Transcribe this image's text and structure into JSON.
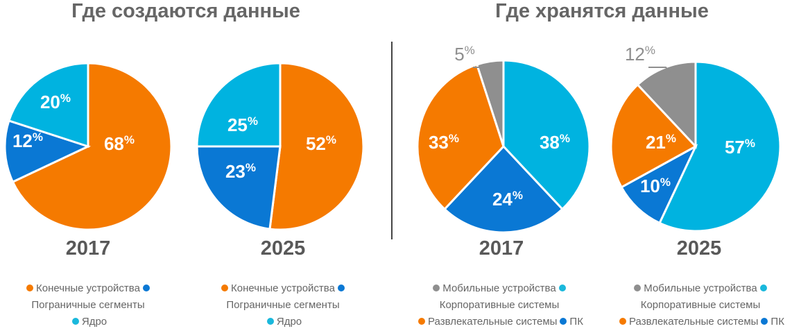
{
  "colors": {
    "orange": "#f57a00",
    "blue": "#0a78d4",
    "cyan": "#00b3e0",
    "gray": "#8f8f8f"
  },
  "chart_data": [
    {
      "type": "pie",
      "group_title": "Где создаются данные",
      "title": "2017",
      "slices": [
        {
          "name": "Конечные устройства",
          "value": 68,
          "color": "orange"
        },
        {
          "name": "Пограничные сегменты",
          "value": 12,
          "color": "blue"
        },
        {
          "name": "Ядро",
          "value": 20,
          "color": "cyan"
        }
      ]
    },
    {
      "type": "pie",
      "group_title": "Где создаются данные",
      "title": "2025",
      "slices": [
        {
          "name": "Конечные устройства",
          "value": 52,
          "color": "orange"
        },
        {
          "name": "Пограничные сегменты",
          "value": 23,
          "color": "blue"
        },
        {
          "name": "Ядро",
          "value": 25,
          "color": "cyan"
        }
      ]
    },
    {
      "type": "pie",
      "group_title": "Где хранятся данные",
      "title": "2017",
      "slices": [
        {
          "name": "Корпоративные системы",
          "value": 38,
          "color": "cyan"
        },
        {
          "name": "ПК",
          "value": 24,
          "color": "blue"
        },
        {
          "name": "Развлекательные системы",
          "value": 33,
          "color": "orange"
        },
        {
          "name": "Мобильные устройства",
          "value": 5,
          "color": "gray"
        }
      ]
    },
    {
      "type": "pie",
      "group_title": "Где хранятся данные",
      "title": "2025",
      "slices": [
        {
          "name": "Корпоративные системы",
          "value": 57,
          "color": "cyan"
        },
        {
          "name": "ПК",
          "value": 10,
          "color": "blue"
        },
        {
          "name": "Развлекательные системы",
          "value": 21,
          "color": "orange"
        },
        {
          "name": "Мобильные устройства",
          "value": 12,
          "color": "gray"
        }
      ]
    }
  ],
  "titles": {
    "left": "Где создаются данные",
    "right": "Где хранятся данные"
  },
  "years": [
    "2017",
    "2025",
    "2017",
    "2025"
  ],
  "percent_sign": "%",
  "legends": {
    "created": {
      "item1": "Конечные устройства",
      "item2": "Пограничные сегменты",
      "item3": "Ядро"
    },
    "stored": {
      "item1": "Мобильные устройства",
      "item2": "Корпоративные системы",
      "item3": "Развлекательные системы",
      "item4": "ПК"
    }
  }
}
